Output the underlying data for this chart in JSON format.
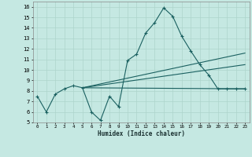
{
  "xlabel": "Humidex (Indice chaleur)",
  "bg_color": "#c5e8e2",
  "grid_color": "#aed4cc",
  "line_color": "#1a6060",
  "xlim": [
    -0.5,
    23.5
  ],
  "ylim": [
    5,
    16.5
  ],
  "xticks": [
    0,
    1,
    2,
    3,
    4,
    5,
    6,
    7,
    8,
    9,
    10,
    11,
    12,
    13,
    14,
    15,
    16,
    17,
    18,
    19,
    20,
    21,
    22,
    23
  ],
  "yticks": [
    5,
    6,
    7,
    8,
    9,
    10,
    11,
    12,
    13,
    14,
    15,
    16
  ],
  "line1_x": [
    0,
    1,
    2,
    3,
    4,
    5,
    6,
    7,
    8,
    9,
    10,
    11,
    12,
    13,
    14,
    15,
    16,
    17,
    18,
    19,
    20,
    21,
    22,
    23
  ],
  "line1_y": [
    7.5,
    6.0,
    7.7,
    8.2,
    8.5,
    8.3,
    6.0,
    5.2,
    7.5,
    6.5,
    10.9,
    11.5,
    13.5,
    14.5,
    15.9,
    15.1,
    13.2,
    11.8,
    10.5,
    9.5,
    8.2,
    8.2,
    8.2,
    8.2
  ],
  "line2_x": [
    5,
    23
  ],
  "line2_y": [
    8.3,
    8.2
  ],
  "line3_x": [
    5,
    23
  ],
  "line3_y": [
    8.3,
    10.5
  ],
  "line4_x": [
    5,
    23
  ],
  "line4_y": [
    8.3,
    11.6
  ]
}
